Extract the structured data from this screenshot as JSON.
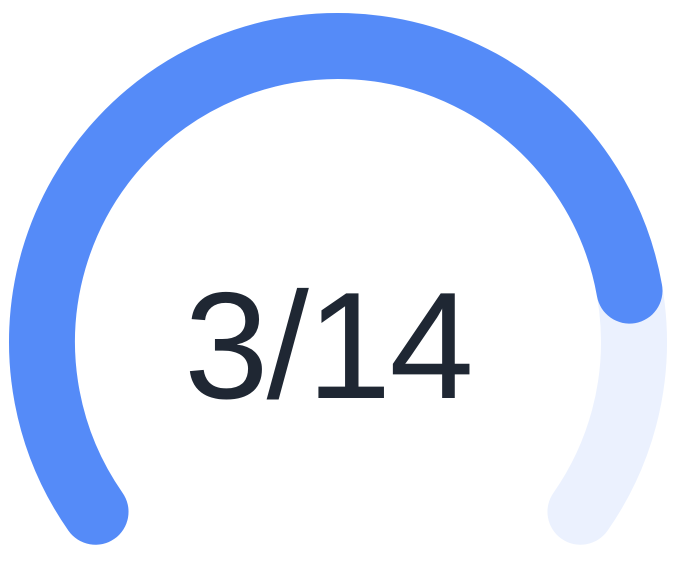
{
  "progress_gauge": {
    "label": "3/14",
    "colors": {
      "track": "#ebf1fe",
      "fill": "#558bf8",
      "text": "#1f2733"
    },
    "fill_fraction": 0.82
  }
}
